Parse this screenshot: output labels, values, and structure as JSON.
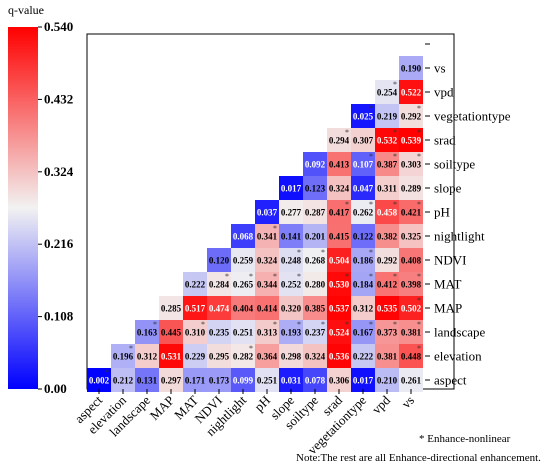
{
  "chart_data": {
    "type": "heatmap",
    "legend_title": "q-value",
    "colorbar": {
      "min": 0.0,
      "max": 0.54,
      "ticks": [
        "0.540",
        "0.432",
        "0.324",
        "0.216",
        "0.108",
        "0.00"
      ],
      "colors": [
        "#0000ff",
        "#f2f2f2",
        "#ff0000"
      ]
    },
    "x_labels": [
      "aspect",
      "elevation",
      "landscape",
      "MAP",
      "MAT",
      "NDVI",
      "nightlight",
      "pH",
      "slope",
      "soiltype",
      "srad",
      "vegetationtype",
      "vpd",
      "vs"
    ],
    "y_labels": [
      "vs",
      "vpd",
      "vegetationtype",
      "srad",
      "soiltype",
      "slope",
      "pH",
      "nightlight",
      "NDVI",
      "MAT",
      "MAP",
      "landscape",
      "elevation",
      "aspect"
    ],
    "rows": [
      [
        "",
        "",
        "",
        "",
        "",
        "",
        "",
        "",
        "",
        "",
        "",
        "",
        "",
        "0.190"
      ],
      [
        "",
        "",
        "",
        "",
        "",
        "",
        "",
        "",
        "",
        "",
        "",
        "",
        "0.254",
        "0.522"
      ],
      [
        "",
        "",
        "",
        "",
        "",
        "",
        "",
        "",
        "",
        "",
        "",
        "0.025",
        "0.219",
        "0.292"
      ],
      [
        "",
        "",
        "",
        "",
        "",
        "",
        "",
        "",
        "",
        "",
        "0.294",
        "0.307",
        "0.532",
        "0.539"
      ],
      [
        "",
        "",
        "",
        "",
        "",
        "",
        "",
        "",
        "",
        "0.092",
        "0.413",
        "0.107",
        "0.387",
        "0.303"
      ],
      [
        "",
        "",
        "",
        "",
        "",
        "",
        "",
        "",
        "0.017",
        "0.123",
        "0.324",
        "0.047",
        "0.311",
        "0.289"
      ],
      [
        "",
        "",
        "",
        "",
        "",
        "",
        "",
        "0.037",
        "0.277",
        "0.287",
        "0.417",
        "0.262",
        "0.458",
        "0.421"
      ],
      [
        "",
        "",
        "",
        "",
        "",
        "",
        "0.068",
        "0.341",
        "0.141",
        "0.201",
        "0.415",
        "0.122",
        "0.382",
        "0.325"
      ],
      [
        "",
        "",
        "",
        "",
        "",
        "0.120",
        "0.259",
        "0.324",
        "0.248",
        "0.268",
        "0.504",
        "0.186",
        "0.292",
        "0.408"
      ],
      [
        "",
        "",
        "",
        "",
        "0.222",
        "0.284",
        "0.265",
        "0.344",
        "0.252",
        "0.280",
        "0.530",
        "0.184",
        "0.412",
        "0.398"
      ],
      [
        "",
        "",
        "",
        "0.285",
        "0.517",
        "0.474",
        "0.404",
        "0.414",
        "0.320",
        "0.385",
        "0.537",
        "0.312",
        "0.535",
        "0.502"
      ],
      [
        "",
        "",
        "0.163",
        "0.445",
        "0.310",
        "0.235",
        "0.251",
        "0.313",
        "0.193",
        "0.237",
        "0.524",
        "0.167",
        "0.373",
        "0.381"
      ],
      [
        "",
        "0.196",
        "0.312",
        "0.531",
        "0.229",
        "0.295",
        "0.282",
        "0.364",
        "0.298",
        "0.324",
        "0.536",
        "0.222",
        "0.381",
        "0.448"
      ],
      [
        "0.002",
        "0.212",
        "0.131",
        "0.297",
        "0.171",
        "0.173",
        "0.099",
        "0.251",
        "0.031",
        "0.078",
        "0.306",
        "0.017",
        "0.210",
        "0.261"
      ]
    ],
    "enhance_nonlinear": [
      [
        12,
        1
      ],
      [
        11,
        2
      ],
      [
        13,
        2
      ],
      [
        10,
        3
      ],
      [
        12,
        3
      ],
      [
        13,
        3
      ],
      [
        11,
        4
      ],
      [
        12,
        4
      ],
      [
        13,
        4
      ],
      [
        10,
        6
      ],
      [
        11,
        6
      ],
      [
        12,
        6
      ],
      [
        13,
        6
      ],
      [
        7,
        7
      ],
      [
        8,
        8
      ],
      [
        9,
        8
      ],
      [
        11,
        8
      ],
      [
        5,
        9
      ],
      [
        6,
        9
      ],
      [
        7,
        9
      ],
      [
        8,
        9
      ],
      [
        10,
        9
      ],
      [
        11,
        9
      ],
      [
        12,
        9
      ],
      [
        13,
        9
      ],
      [
        13,
        10
      ],
      [
        2,
        11
      ],
      [
        4,
        11
      ],
      [
        7,
        11
      ],
      [
        8,
        11
      ],
      [
        9,
        11
      ],
      [
        10,
        11
      ],
      [
        11,
        11
      ],
      [
        12,
        11
      ],
      [
        13,
        11
      ],
      [
        1,
        12
      ],
      [
        6,
        12
      ],
      [
        13,
        12
      ],
      [
        0,
        13
      ]
    ],
    "notes": [
      "* Enhance-nonlinear",
      "Note:The rest are all Enhance-directional enhancement."
    ]
  }
}
